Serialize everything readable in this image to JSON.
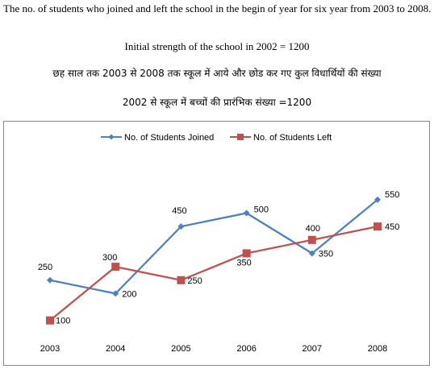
{
  "intro": {
    "paragraph": "The no. of students  who joined and left the school in the begin of year for six year from  2003 to 2008.",
    "initial_strength": "Initial strength  of the school in 2002 = 1200",
    "hindi_line_1": "छह साल तक 2003 से 2008 तक स्कूल में आये और छोड कर गए कुल विधार्थियों की संख्या",
    "hindi_line_2": "2002 से स्कूल में बच्चों की प्रारंभिक संख्या =1200"
  },
  "colors": {
    "joined": "#4F81BD",
    "left": "#C0504D",
    "text": "#000000"
  },
  "chart_data": {
    "type": "line",
    "title": "",
    "xlabel": "",
    "ylabel": "",
    "categories": [
      "2003",
      "2004",
      "2005",
      "2006",
      "2007",
      "2008"
    ],
    "ylim": [
      0,
      650
    ],
    "grid": false,
    "legend_position": "top",
    "series": [
      {
        "name": "No. of Students Joined",
        "values": [
          250,
          200,
          450,
          500,
          350,
          550
        ],
        "color": "#4F81BD",
        "marker": "diamond"
      },
      {
        "name": "No. of Students Left",
        "values": [
          100,
          300,
          250,
          350,
          400,
          450
        ],
        "color": "#C0504D",
        "marker": "square"
      }
    ]
  }
}
